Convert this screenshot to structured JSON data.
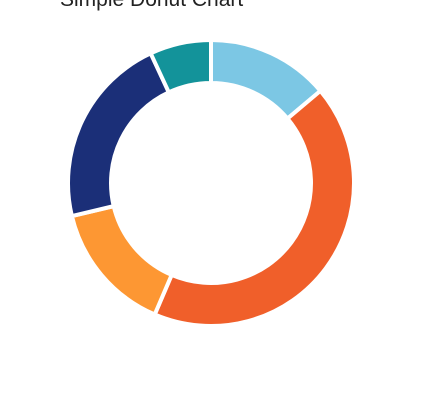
{
  "chart_data": {
    "type": "pie",
    "title": "Simple Donut Chart",
    "donut": true,
    "legend": "none",
    "values": [
      14,
      43,
      15,
      22,
      7
    ],
    "colors": [
      "#7cc7e4",
      "#f05f2a",
      "#fd9733",
      "#1b2f78",
      "#13939a"
    ]
  }
}
